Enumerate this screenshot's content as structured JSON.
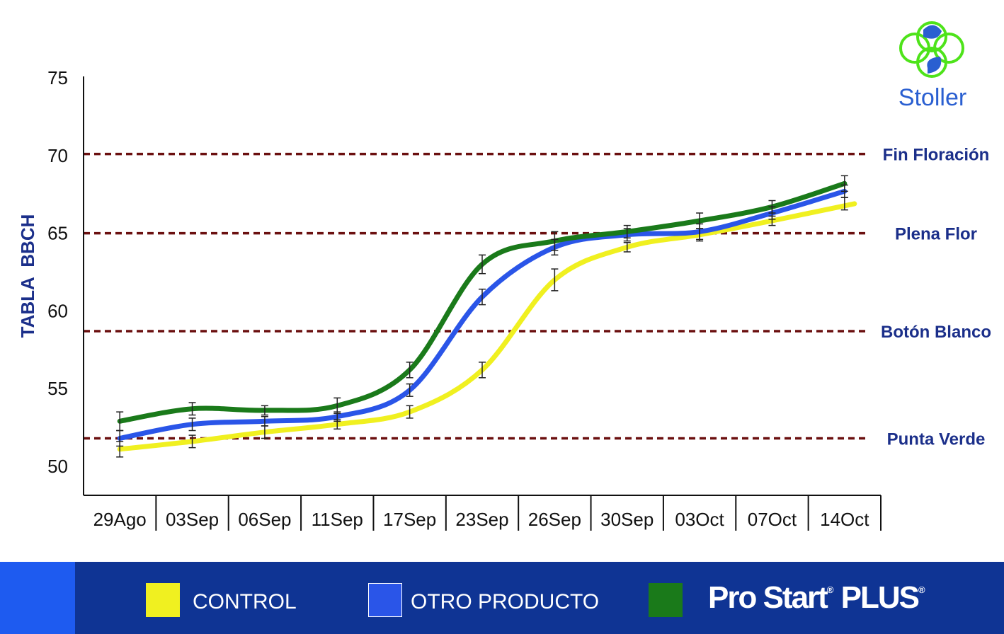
{
  "logo": {
    "text": "Stoller"
  },
  "chart_data": {
    "type": "line",
    "title": "",
    "ylabel": "TABLA  BBCH",
    "xlabel": "",
    "ylim": [
      48,
      75
    ],
    "yticks": [
      50,
      55,
      60,
      65,
      70,
      75
    ],
    "categories": [
      "29Ago",
      "03Sep",
      "06Sep",
      "11Sep",
      "17Sep",
      "23Sep",
      "26Sep",
      "30Sep",
      "03Oct",
      "07Oct",
      "14Oct"
    ],
    "series": [
      {
        "name": "CONTROL",
        "color": "#f0f020",
        "values": [
          51.1,
          51.6,
          52.2,
          52.7,
          53.5,
          56.2,
          62.0,
          64.1,
          64.9,
          65.8,
          66.9
        ],
        "errors": [
          0.5,
          0.4,
          0.4,
          0.3,
          0.4,
          0.5,
          0.7,
          0.3,
          0.4,
          0.3,
          0.4
        ]
      },
      {
        "name": "OTRO PRODUCTO",
        "color": "#2a55e8",
        "values": [
          51.8,
          52.7,
          52.9,
          53.2,
          54.9,
          60.9,
          64.1,
          64.9,
          65.1,
          66.3,
          67.7
        ],
        "errors": [
          0.5,
          0.4,
          0.3,
          0.3,
          0.4,
          0.5,
          0.5,
          0.4,
          0.5,
          0.4,
          0.4
        ]
      },
      {
        "name": "Pro Start PLUS",
        "color": "#1a7a1a",
        "values": [
          52.9,
          53.7,
          53.6,
          53.9,
          56.2,
          63.0,
          64.5,
          65.1,
          65.8,
          66.7,
          68.2
        ],
        "errors": [
          0.6,
          0.4,
          0.3,
          0.5,
          0.5,
          0.6,
          0.6,
          0.4,
          0.5,
          0.4,
          0.5
        ]
      }
    ],
    "reference_lines": [
      {
        "label": "Fin Floración",
        "value": 70.1
      },
      {
        "label": "Plena Flor",
        "value": 65.0
      },
      {
        "label": "Botón Blanco",
        "value": 58.7
      },
      {
        "label": "Punta Verde",
        "value": 51.8
      }
    ],
    "reference_line_color": "#6b1010",
    "grid": false,
    "legend_position": "bottom"
  },
  "legend": {
    "control_label": "CONTROL",
    "otro_label": "OTRO PRODUCTO",
    "brand_label": "Pro Start",
    "brand_suffix": "PLUS",
    "registered_mark": "®"
  }
}
